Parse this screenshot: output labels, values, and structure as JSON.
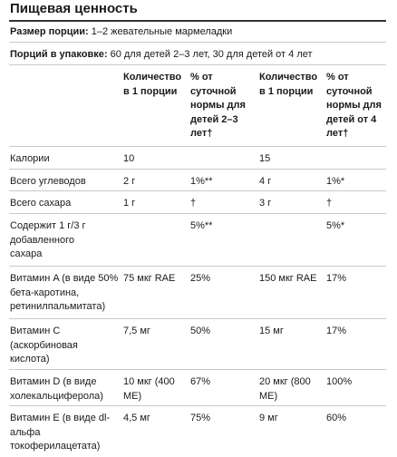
{
  "title": "Пищевая ценность",
  "serving": {
    "label": "Размер порции:",
    "value": " 1–2 жевательные мармеладки"
  },
  "servings_per_container": {
    "label": "Порций в упаковке:",
    "value": " 60 для детей 2–3 лет, 30 для детей от 4 лет"
  },
  "headers": {
    "amount_2_3": "Количество в 1 порции",
    "dv_2_3": "% от суточной нормы для детей 2–3 лет†",
    "amount_4": "Количество в 1 порции",
    "dv_4": "% от суточной нормы для детей от 4 лет†"
  },
  "rows": [
    {
      "name": "Калории",
      "amount_2_3": "10",
      "dv_2_3": "",
      "amount_4": "15",
      "dv_4": ""
    },
    {
      "name": "Всего углеводов",
      "amount_2_3": "2 г",
      "dv_2_3": "1%**",
      "amount_4": "4 г",
      "dv_4": "1%*"
    },
    {
      "name": "Всего сахара",
      "amount_2_3": "1 г",
      "dv_2_3": "†",
      "amount_4": "3 г",
      "dv_4": "†"
    },
    {
      "name": "Содержит 1 г/3 г добавленного сахара",
      "amount_2_3": "",
      "dv_2_3": "5%**",
      "amount_4": "",
      "dv_4": "5%*"
    },
    {
      "name": "Витамин A (в виде 50% бета-каротина, ретинилпальмитата)",
      "amount_2_3": "75 мкг RAE",
      "dv_2_3": "25%",
      "amount_4": "150 мкг RAE",
      "dv_4": "17%"
    },
    {
      "name": "Витамин C (аскорбиновая кислота)",
      "amount_2_3": "7,5 мг",
      "dv_2_3": "50%",
      "amount_4": "15 мг",
      "dv_4": "17%"
    },
    {
      "name": "Витамин D (в виде холекальциферола)",
      "amount_2_3": "10 мкг (400 МЕ)",
      "dv_2_3": "67%",
      "amount_4": "20 мкг (800 МЕ)",
      "dv_4": "100%"
    },
    {
      "name": "Витамин E (в виде dl-альфа токоферилацетата)",
      "amount_2_3": "4,5 мг",
      "dv_2_3": "75%",
      "amount_4": "9 мг",
      "dv_4": "60%"
    }
  ]
}
